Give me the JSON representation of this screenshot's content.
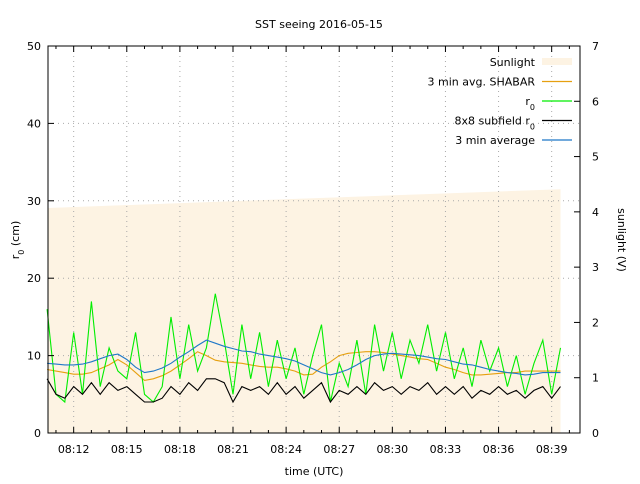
{
  "chart_data": {
    "type": "line",
    "title": "SST seeing 2016-05-15",
    "xlabel": "time (UTC)",
    "ylabel": "r0 (cm)",
    "y2label": "sunlight (V)",
    "xlim_minutes_after_0800": [
      10.55,
      40.6
    ],
    "ylim": [
      0,
      50
    ],
    "y2lim": [
      0,
      7
    ],
    "grid": true,
    "legend_position": "top-right",
    "xticks": [
      {
        "v": 12,
        "label": "08:12"
      },
      {
        "v": 15,
        "label": "08:15"
      },
      {
        "v": 18,
        "label": "08:18"
      },
      {
        "v": 21,
        "label": "08:21"
      },
      {
        "v": 24,
        "label": "08:24"
      },
      {
        "v": 27,
        "label": "08:27"
      },
      {
        "v": 30,
        "label": "08:30"
      },
      {
        "v": 33,
        "label": "08:33"
      },
      {
        "v": 36,
        "label": "08:36"
      },
      {
        "v": 39,
        "label": "08:39"
      }
    ],
    "yticks": [
      "0",
      "10",
      "20",
      "30",
      "40",
      "50"
    ],
    "y2ticks": [
      "0",
      "1",
      "2",
      "3",
      "4",
      "5",
      "6",
      "7"
    ],
    "x_start_minutes": 10.5,
    "x_step_minutes": 0.5,
    "series": [
      {
        "name": "Sunlight",
        "axis": "y2",
        "type": "area",
        "color": "#fdf3e3",
        "start": 4.07,
        "end": 4.41
      },
      {
        "name": "3 min avg. SHABAR",
        "color": "#e6a010",
        "values": [
          8.2,
          8,
          7.8,
          7.6,
          7.6,
          7.8,
          8.3,
          8.8,
          9.5,
          8.8,
          7.8,
          6.8,
          7,
          7.4,
          8,
          8.8,
          9.6,
          10.5,
          10,
          9.4,
          9.2,
          9.1,
          9,
          8.8,
          8.6,
          8.5,
          8.5,
          8.3,
          8,
          7.5,
          7.6,
          8.5,
          9.2,
          10,
          10.3,
          10.4,
          10.5,
          10.5,
          10.4,
          10.2,
          10,
          9.8,
          9.6,
          9.5,
          9,
          8.5,
          8.2,
          7.8,
          7.5,
          7.5,
          7.6,
          7.7,
          7.8,
          7.8,
          8,
          8,
          8,
          8,
          8
        ]
      },
      {
        "name": "r0",
        "color": "#00ee00",
        "values": [
          16,
          5,
          4,
          13,
          5,
          17,
          6,
          11,
          8,
          7,
          13,
          5,
          4,
          6,
          15,
          7,
          14,
          8,
          11,
          18,
          12,
          5,
          14,
          7,
          13,
          6,
          12,
          7,
          11,
          5,
          10,
          14,
          4,
          9,
          6,
          12,
          5,
          14,
          8,
          13,
          7,
          12,
          9,
          14,
          8,
          13,
          7,
          11,
          6,
          12,
          8,
          11,
          6,
          10,
          5,
          9,
          12,
          5,
          11
        ]
      },
      {
        "name": "8x8 subfield r0",
        "color": "#000000",
        "values": [
          7,
          5,
          4.5,
          6,
          5,
          6.5,
          5,
          6.5,
          5.5,
          6,
          5,
          4,
          4,
          4.5,
          6,
          5,
          6.5,
          5.5,
          7,
          7,
          6.5,
          4,
          6,
          5.5,
          6,
          5,
          6.5,
          5,
          6,
          4.5,
          5.5,
          6.5,
          4,
          5.5,
          5,
          6,
          5,
          6.5,
          5.5,
          6,
          5,
          6,
          5.5,
          6.5,
          5,
          6,
          5,
          6,
          4.5,
          5.5,
          5,
          6,
          5,
          5.5,
          4.5,
          5.5,
          6,
          4.5,
          6
        ]
      },
      {
        "name": "3 min average",
        "color": "#1f78c8",
        "values": [
          9,
          8.9,
          8.8,
          8.8,
          8.9,
          9.2,
          9.6,
          10,
          10.2,
          9.5,
          8.5,
          7.8,
          8,
          8.4,
          9,
          9.8,
          10.5,
          11.3,
          12,
          11.6,
          11.2,
          10.9,
          10.6,
          10.5,
          10.2,
          10,
          9.8,
          9.6,
          9.3,
          8.8,
          8.3,
          7.8,
          7.5,
          7.8,
          8.2,
          8.8,
          9.5,
          10,
          10.2,
          10.3,
          10.2,
          10.1,
          10,
          9.8,
          9.6,
          9.5,
          9.2,
          8.9,
          8.8,
          8.5,
          8.2,
          8,
          7.8,
          7.7,
          7.5,
          7.6,
          7.8,
          7.8,
          7.8
        ]
      }
    ]
  }
}
